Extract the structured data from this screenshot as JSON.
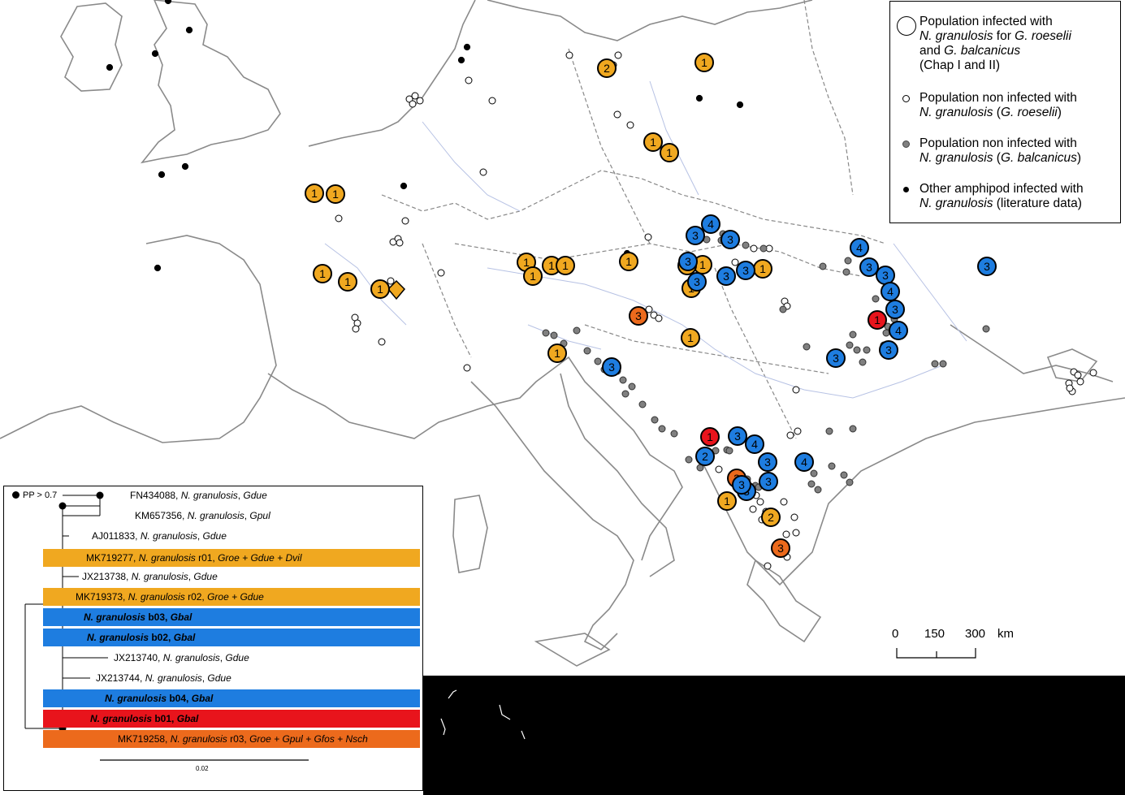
{
  "legend": {
    "items": [
      {
        "lines": [
          "Population infected with",
          "<i>N. granulosis</i> for <i>G. roeselii</i>",
          "and <i>G. balcanicus</i>",
          "(Chap I and II)"
        ],
        "symbol": "large-open-circle"
      },
      {
        "lines": [
          "Population non infected with",
          "<i>N. granulosis</i> (<i>G. roeselii</i>)"
        ],
        "symbol": "small-open-circle"
      },
      {
        "lines": [
          "Population non infected with",
          "<i>N. granulosis</i> (<i>G. balcanicus</i>)"
        ],
        "symbol": "grey-dot"
      },
      {
        "lines": [
          "Other amphipod infected with",
          "<i>N. granulosis</i> (literature data)"
        ],
        "symbol": "black-dot"
      }
    ]
  },
  "scale_bar": {
    "ticks": [
      "0",
      "150",
      "300"
    ],
    "unit": "km"
  },
  "tree": {
    "support_note": "PP > 0.7",
    "scale_label": "0.02",
    "taxa": [
      {
        "acc": "FN434088, ",
        "sp": "N. granulosis",
        "rest": ", Gdue",
        "group": "none"
      },
      {
        "acc": "KM657356, ",
        "sp": "N. granulosis",
        "rest": ", Gpul",
        "group": "none"
      },
      {
        "acc": "AJ011833, ",
        "sp": "N. granulosis",
        "rest": ", Gdue",
        "group": "none"
      },
      {
        "acc": "MK719277, ",
        "sp": "N. granulosis",
        "rest": " r01, Groe + Gdue + Dvil",
        "group": "orange"
      },
      {
        "acc": "JX213738, ",
        "sp": "N. granulosis",
        "rest": ", Gdue",
        "group": "none"
      },
      {
        "acc": "MK719373, ",
        "sp": "N. granulosis",
        "rest": " r02, Groe + Gdue",
        "group": "orange"
      },
      {
        "acc": "",
        "sp": "N. granulosis",
        "rest": " b03, Gbal",
        "group": "blue"
      },
      {
        "acc": "",
        "sp": "N. granulosis",
        "rest": " b02, Gbal",
        "group": "blue"
      },
      {
        "acc": "JX213740, ",
        "sp": "N. granulosis",
        "rest": ", Gdue",
        "group": "none"
      },
      {
        "acc": "JX213744, ",
        "sp": "N. granulosis",
        "rest": ", Gdue",
        "group": "none"
      },
      {
        "acc": "",
        "sp": "N. granulosis",
        "rest": " b04, Gbal",
        "group": "blue"
      },
      {
        "acc": "",
        "sp": "N. granulosis",
        "rest": " b01, Gbal",
        "group": "red"
      },
      {
        "acc": "MK719258, ",
        "sp": "N. granulosis",
        "rest": " r03, Groe + Gpul + Gfos + Nsch",
        "group": "darkorange"
      }
    ]
  },
  "colors": {
    "orange": "#f0a820",
    "blue": "#1e7de0",
    "red": "#e8141c",
    "darkorange": "#ec6a1c",
    "grey_dot": "#808080",
    "black_dot": "#000000",
    "borders": "#888888",
    "rivers": "#b7c2e4",
    "coast": "#8a8a8a"
  },
  "map_markers": {
    "infected": [
      {
        "n": "1",
        "c": "orange"
      },
      {
        "n": "2",
        "c": "orange"
      },
      {
        "n": "1",
        "c": "orange"
      },
      {
        "n": "1",
        "c": "orange"
      },
      {
        "n": "1",
        "c": "orange"
      },
      {
        "n": "1",
        "c": "orange"
      },
      {
        "n": "1",
        "c": "orange"
      },
      {
        "n": "1",
        "c": "orange"
      },
      {
        "n": "1",
        "c": "orange"
      },
      {
        "n": "1",
        "c": "orange"
      },
      {
        "n": "1",
        "c": "orange"
      },
      {
        "n": "1",
        "c": "orange"
      },
      {
        "n": "1",
        "c": "orange"
      },
      {
        "n": "1",
        "c": "orange"
      },
      {
        "n": "1",
        "c": "orange"
      },
      {
        "n": "1",
        "c": "orange"
      },
      {
        "n": "1",
        "c": "orange"
      },
      {
        "n": "1",
        "c": "orange"
      },
      {
        "n": "1",
        "c": "orange"
      },
      {
        "n": "1",
        "c": "orange"
      },
      {
        "n": "1",
        "c": "orange"
      },
      {
        "n": "2",
        "c": "orange"
      },
      {
        "n": "3",
        "c": "darkorange"
      },
      {
        "n": "3",
        "c": "darkorange"
      },
      {
        "n": "3",
        "c": "darkorange"
      },
      {
        "n": "1",
        "c": "red"
      },
      {
        "n": "1",
        "c": "red"
      },
      {
        "n": "4",
        "c": "blue"
      },
      {
        "n": "3",
        "c": "blue"
      },
      {
        "n": "3",
        "c": "blue"
      },
      {
        "n": "3",
        "c": "blue"
      },
      {
        "n": "3",
        "c": "blue"
      },
      {
        "n": "3",
        "c": "blue"
      },
      {
        "n": "3",
        "c": "blue"
      },
      {
        "n": "3",
        "c": "blue"
      },
      {
        "n": "4",
        "c": "blue"
      },
      {
        "n": "3",
        "c": "blue"
      },
      {
        "n": "3",
        "c": "blue"
      },
      {
        "n": "4",
        "c": "blue"
      },
      {
        "n": "3",
        "c": "blue"
      },
      {
        "n": "4",
        "c": "blue"
      },
      {
        "n": "3",
        "c": "blue"
      },
      {
        "n": "3",
        "c": "blue"
      },
      {
        "n": "3",
        "c": "blue"
      },
      {
        "n": "3",
        "c": "blue"
      },
      {
        "n": "4",
        "c": "blue"
      },
      {
        "n": "3",
        "c": "blue"
      },
      {
        "n": "2",
        "c": "blue"
      },
      {
        "n": "4",
        "c": "blue"
      },
      {
        "n": "3",
        "c": "blue"
      },
      {
        "n": "3",
        "c": "blue"
      },
      {
        "n": "3",
        "c": "blue"
      }
    ]
  }
}
